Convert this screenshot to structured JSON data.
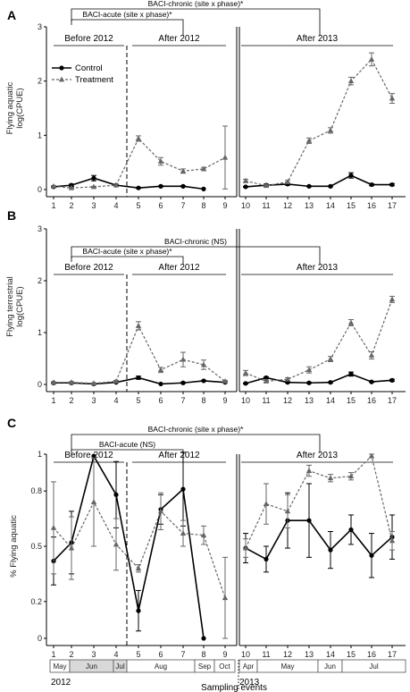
{
  "colors": {
    "control": "#000000",
    "treatment": "#666666",
    "month_shade": "#d9d9d9"
  },
  "x_title": "Sampling events",
  "legend": {
    "control": "Control",
    "treatment": "Treatment",
    "placement": "top-left"
  },
  "months": [
    {
      "label": "May",
      "shaded": false
    },
    {
      "label": "Jun",
      "shaded": true
    },
    {
      "label": "Jul",
      "shaded": true
    },
    {
      "label": "Aug",
      "shaded": false
    },
    {
      "label": "Sep",
      "shaded": false
    },
    {
      "label": "Oct",
      "shaded": false
    },
    {
      "label": "Apr",
      "shaded": false
    },
    {
      "label": "May",
      "shaded": false
    },
    {
      "label": "Jun",
      "shaded": false
    },
    {
      "label": "Jul",
      "shaded": false
    }
  ],
  "years": [
    "2012",
    "2013"
  ],
  "chart_data": [
    {
      "panel": "A",
      "type": "line",
      "ylabel": [
        "Flying aquatic",
        "log(CPUE)"
      ],
      "ylim": [
        0,
        3
      ],
      "yticks": [
        0,
        1,
        2,
        3
      ],
      "ytick_labels": [
        "0",
        "1",
        "2",
        "3"
      ],
      "x": [
        1,
        2,
        3,
        4,
        5,
        6,
        7,
        8,
        9,
        10,
        11,
        12,
        13,
        14,
        15,
        16,
        17
      ],
      "phases": [
        "Before 2012",
        "After 2012",
        "After 2013"
      ],
      "brackets": [
        {
          "label": "BACI-chronic (site x phase)*",
          "from": 2,
          "to": 13.5
        },
        {
          "label": "BACI-acute (site x phase)*",
          "from": 2,
          "to": 7
        }
      ],
      "series": [
        {
          "name": "Control",
          "y": [
            0.05,
            0.08,
            0.21,
            0.08,
            0.03,
            0.06,
            0.06,
            0.01,
            null,
            0.05,
            0.08,
            0.1,
            0.06,
            0.06,
            0.26,
            0.09,
            0.09
          ],
          "err": [
            0.01,
            0.02,
            0.05,
            0.02,
            0.01,
            0.01,
            0.01,
            0.0,
            0,
            0.01,
            0.02,
            0.02,
            0.01,
            0.01,
            0.05,
            0.02,
            0.02
          ]
        },
        {
          "name": "Treatment",
          "y": [
            0.06,
            0.03,
            0.05,
            0.08,
            0.94,
            0.52,
            0.34,
            0.38,
            0.59,
            0.16,
            0.07,
            0.14,
            0.9,
            1.09,
            2.0,
            2.4,
            1.68
          ],
          "err": [
            0.01,
            0.01,
            0.01,
            0.02,
            0.05,
            0.07,
            0.04,
            0.03,
            0.58,
            0.03,
            0.02,
            0.03,
            0.05,
            0.05,
            0.07,
            0.12,
            0.09
          ]
        }
      ]
    },
    {
      "panel": "B",
      "type": "line",
      "ylabel": [
        "Flying terrestrial",
        "log(CPUE)"
      ],
      "ylim": [
        0,
        3
      ],
      "yticks": [
        0,
        1,
        2,
        3
      ],
      "ytick_labels": [
        "0",
        "1",
        "2",
        "3"
      ],
      "x": [
        1,
        2,
        3,
        4,
        5,
        6,
        7,
        8,
        9,
        10,
        11,
        12,
        13,
        14,
        15,
        16,
        17
      ],
      "phases": [
        "Before 2012",
        "After 2012",
        "After 2013"
      ],
      "brackets": [
        {
          "label": "BACI-chronic (NS)",
          "from": 2,
          "to": 13.5
        },
        {
          "label": "BACI-acute (site x phase)*",
          "from": 2,
          "to": 7
        }
      ],
      "series": [
        {
          "name": "Control",
          "y": [
            0.03,
            0.03,
            0.01,
            0.04,
            0.13,
            0.01,
            0.03,
            0.07,
            0.04,
            0.02,
            0.13,
            0.04,
            0.03,
            0.04,
            0.2,
            0.05,
            0.08
          ],
          "err": [
            0.01,
            0.01,
            0.0,
            0.01,
            0.03,
            0.0,
            0.01,
            0.01,
            0.01,
            0.01,
            0.02,
            0.01,
            0.01,
            0.01,
            0.04,
            0.01,
            0.02
          ]
        },
        {
          "name": "Treatment",
          "y": [
            0.04,
            0.04,
            0.02,
            0.06,
            1.13,
            0.28,
            0.48,
            0.38,
            0.06,
            0.22,
            0.06,
            0.1,
            0.28,
            0.49,
            1.19,
            0.56,
            1.64
          ],
          "err": [
            0.01,
            0.01,
            0.01,
            0.02,
            0.08,
            0.05,
            0.14,
            0.09,
            0.02,
            0.05,
            0.02,
            0.03,
            0.06,
            0.05,
            0.06,
            0.07,
            0.06
          ]
        }
      ]
    },
    {
      "panel": "C",
      "type": "line",
      "ylabel": [
        "% Flying aquatic"
      ],
      "ylim": [
        0,
        1
      ],
      "yticks": [
        0,
        0.2,
        0.5,
        0.8,
        1
      ],
      "ytick_labels": [
        "0",
        "0.2",
        "0.5",
        "0.8",
        "1"
      ],
      "x": [
        1,
        2,
        3,
        4,
        5,
        6,
        7,
        8,
        9,
        10,
        11,
        12,
        13,
        14,
        15,
        16,
        17
      ],
      "phases": [
        "Before 2012",
        "After 2012",
        "After 2013"
      ],
      "brackets": [
        {
          "label": "BACI-chronic (site x phase)*",
          "from": 2,
          "to": 13.5
        },
        {
          "label": "BACI-acute (NS)",
          "from": 2,
          "to": 7
        }
      ],
      "series": [
        {
          "name": "Control",
          "y": [
            0.42,
            0.52,
            0.99,
            0.78,
            0.15,
            0.7,
            0.81,
            0.0,
            null,
            0.49,
            0.43,
            0.64,
            0.64,
            0.48,
            0.59,
            0.45,
            0.55
          ],
          "err": [
            0.13,
            0.17,
            0.0,
            0.18,
            0.11,
            0.08,
            0.2,
            0.0,
            0,
            0.08,
            0.07,
            0.15,
            0.2,
            0.1,
            0.08,
            0.12,
            0.12
          ]
        },
        {
          "name": "Treatment",
          "y": [
            0.6,
            0.49,
            0.74,
            0.51,
            0.38,
            0.69,
            0.57,
            0.56,
            0.22,
            0.49,
            0.73,
            0.69,
            0.91,
            0.87,
            0.88,
            0.99,
            0.53
          ],
          "err": [
            0.25,
            0.17,
            0.24,
            0.14,
            0.02,
            0.1,
            0.07,
            0.05,
            0.22,
            0.05,
            0.11,
            0.09,
            0.03,
            0.02,
            0.02,
            0.01,
            0.05
          ]
        }
      ]
    }
  ]
}
